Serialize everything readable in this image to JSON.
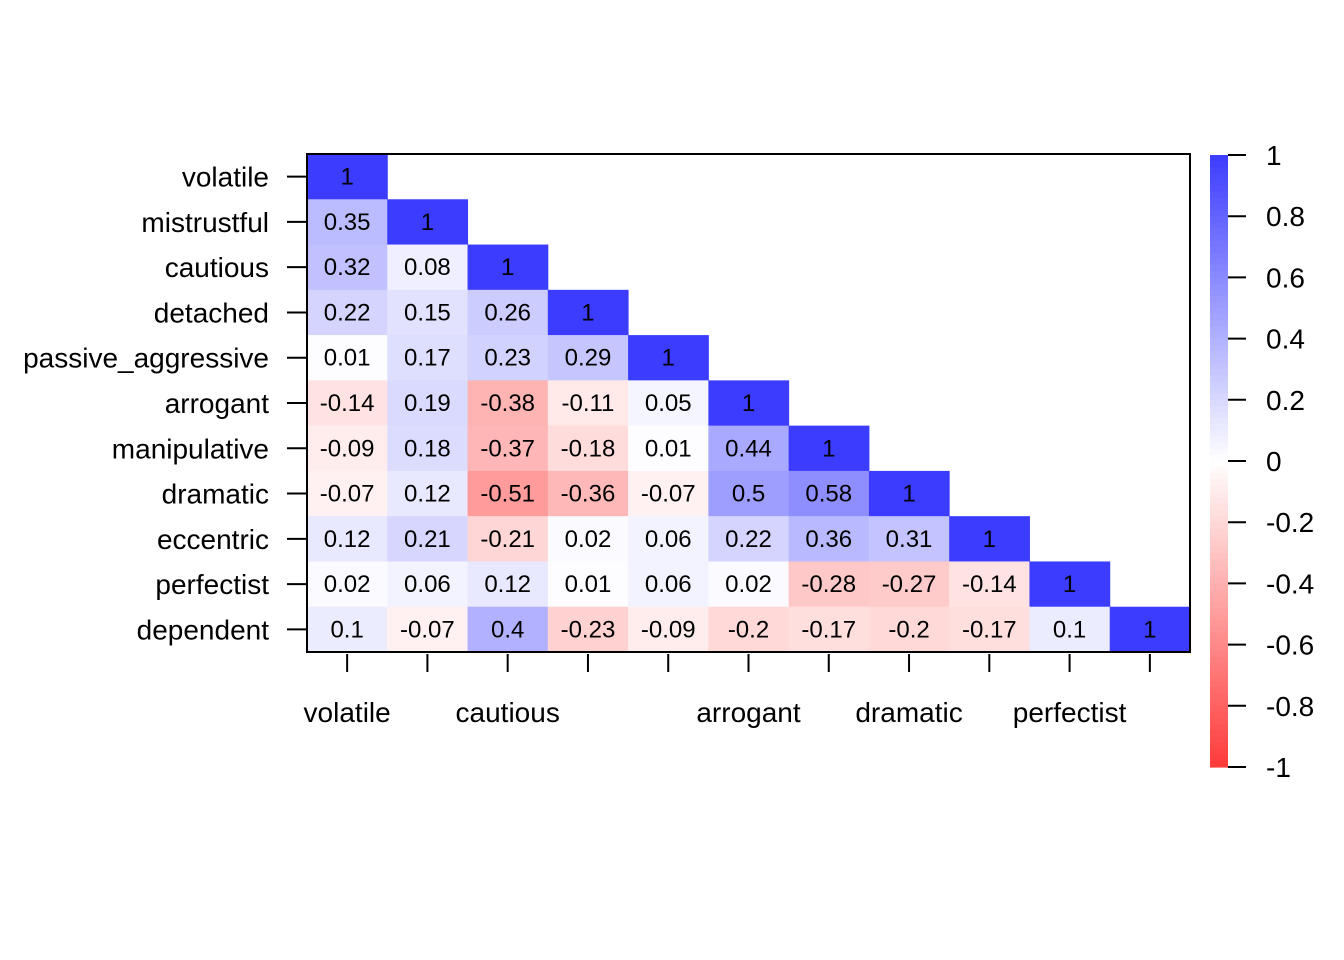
{
  "chart_data": {
    "type": "heatmap",
    "variables": [
      "volatile",
      "mistrustful",
      "cautious",
      "detached",
      "passive_aggressive",
      "arrogant",
      "manipulative",
      "dramatic",
      "eccentric",
      "perfectist",
      "dependent"
    ],
    "x_tick_labels": [
      "volatile",
      "",
      "cautious",
      "",
      "",
      "arrogant",
      "",
      "dramatic",
      "",
      "perfectist",
      ""
    ],
    "lower_triangle": [
      [
        1
      ],
      [
        0.35,
        1
      ],
      [
        0.32,
        0.08,
        1
      ],
      [
        0.22,
        0.15,
        0.26,
        1
      ],
      [
        0.01,
        0.17,
        0.23,
        0.29,
        1
      ],
      [
        -0.14,
        0.19,
        -0.38,
        -0.11,
        0.05,
        1
      ],
      [
        -0.09,
        0.18,
        -0.37,
        -0.18,
        0.01,
        0.44,
        1
      ],
      [
        -0.07,
        0.12,
        -0.51,
        -0.36,
        -0.07,
        0.5,
        0.58,
        1
      ],
      [
        0.12,
        0.21,
        -0.21,
        0.02,
        0.06,
        0.22,
        0.36,
        0.31,
        1
      ],
      [
        0.02,
        0.06,
        0.12,
        0.01,
        0.06,
        0.02,
        -0.28,
        -0.27,
        -0.14,
        1
      ],
      [
        0.1,
        -0.07,
        0.4,
        -0.23,
        -0.09,
        -0.2,
        -0.17,
        -0.2,
        -0.17,
        0.1,
        1
      ]
    ],
    "colorbar": {
      "range": [
        -1,
        1
      ],
      "ticks": [
        "1",
        "0.8",
        "0.6",
        "0.4",
        "0.2",
        "0",
        "-0.2",
        "-0.4",
        "-0.6",
        "-0.8",
        "-1"
      ],
      "tick_values": [
        1,
        0.8,
        0.6,
        0.4,
        0.2,
        0,
        -0.2,
        -0.4,
        -0.6,
        -0.8,
        -1
      ],
      "low_color": "#ff3a3a",
      "mid_color": "#ffffff",
      "high_color": "#3c3cff"
    }
  }
}
